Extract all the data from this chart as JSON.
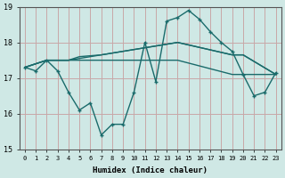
{
  "xlabel": "Humidex (Indice chaleur)",
  "xlim": [
    -0.5,
    23.5
  ],
  "ylim": [
    15,
    19
  ],
  "yticks": [
    15,
    16,
    17,
    18,
    19
  ],
  "xticks": [
    0,
    1,
    2,
    3,
    4,
    5,
    6,
    7,
    8,
    9,
    10,
    11,
    12,
    13,
    14,
    15,
    16,
    17,
    18,
    19,
    20,
    21,
    22,
    23
  ],
  "bg_color": "#cfe8e5",
  "grid_color": "#c8a8a8",
  "line_color": "#1a6b6b",
  "line1_x": [
    0,
    1,
    2,
    3,
    4,
    5,
    6,
    7,
    8,
    9,
    10,
    11,
    12,
    13,
    14,
    15,
    16,
    17,
    18,
    19,
    20,
    21,
    22,
    23
  ],
  "line1_y": [
    17.3,
    17.2,
    17.5,
    17.2,
    16.6,
    16.1,
    16.3,
    15.4,
    15.7,
    15.7,
    16.6,
    18.0,
    16.9,
    18.6,
    18.7,
    18.9,
    18.65,
    18.3,
    18.0,
    17.75,
    17.1,
    16.5,
    16.6,
    17.15
  ],
  "line2_x": [
    0,
    2,
    4,
    10,
    13,
    14,
    19,
    20,
    23
  ],
  "line2_y": [
    17.3,
    17.5,
    17.5,
    17.5,
    17.5,
    17.5,
    17.1,
    17.1,
    17.1
  ],
  "line3_x": [
    0,
    2,
    4,
    5,
    7,
    9,
    10,
    11,
    12,
    13,
    14,
    19,
    20,
    23
  ],
  "line3_y": [
    17.3,
    17.5,
    17.5,
    17.6,
    17.65,
    17.75,
    17.8,
    17.85,
    17.9,
    17.95,
    18.0,
    17.65,
    17.65,
    17.1
  ],
  "line4_x": [
    0,
    2,
    4,
    5,
    6,
    7,
    8,
    9,
    10,
    11,
    12,
    13,
    14,
    19,
    20,
    23
  ],
  "line4_y": [
    17.3,
    17.5,
    17.5,
    17.55,
    17.6,
    17.65,
    17.7,
    17.75,
    17.8,
    17.85,
    17.9,
    17.95,
    18.0,
    17.65,
    17.65,
    17.1
  ]
}
